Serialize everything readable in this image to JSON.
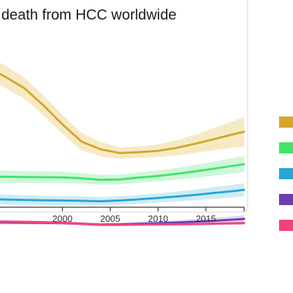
{
  "chart_data": {
    "type": "line",
    "title": "death from HCC worldwide",
    "xlabel": "",
    "ylabel": "",
    "xlim": [
      1990,
      2019
    ],
    "ylim": [
      0,
      1
    ],
    "xticks": [
      2000,
      2005,
      2010,
      2015
    ],
    "grid": false,
    "legend_position": "right",
    "x": [
      1990,
      1992,
      1994,
      1996,
      1998,
      2000,
      2002,
      2004,
      2006,
      2008,
      2010,
      2012,
      2014,
      2016,
      2018,
      2019
    ],
    "series": [
      {
        "color": "#d4a62a",
        "band_color": "#f5e6bb",
        "values": [
          0.93,
          0.89,
          0.84,
          0.78,
          0.69,
          0.59,
          0.5,
          0.46,
          0.44,
          0.445,
          0.452,
          0.468,
          0.49,
          0.515,
          0.54,
          0.552
        ],
        "band": [
          0.065,
          0.062,
          0.058,
          0.055,
          0.052,
          0.05,
          0.045,
          0.038,
          0.03,
          0.03,
          0.033,
          0.04,
          0.048,
          0.06,
          0.07,
          0.078
        ]
      },
      {
        "color": "#42e46a",
        "band_color": "#c7f6d2",
        "values": [
          0.32,
          0.318,
          0.316,
          0.315,
          0.314,
          0.313,
          0.308,
          0.3,
          0.302,
          0.312,
          0.32,
          0.332,
          0.345,
          0.36,
          0.375,
          0.382
        ],
        "band": [
          0.035,
          0.033,
          0.032,
          0.031,
          0.03,
          0.03,
          0.028,
          0.026,
          0.026,
          0.027,
          0.029,
          0.031,
          0.034,
          0.037,
          0.04,
          0.042
        ]
      },
      {
        "color": "#24a7d6",
        "band_color": "#c8e8f5",
        "values": [
          0.205,
          0.2,
          0.197,
          0.195,
          0.193,
          0.192,
          0.19,
          0.188,
          0.192,
          0.198,
          0.205,
          0.213,
          0.222,
          0.232,
          0.242,
          0.248
        ],
        "band": [
          0.028,
          0.027,
          0.026,
          0.025,
          0.024,
          0.024,
          0.023,
          0.022,
          0.022,
          0.023,
          0.024,
          0.026,
          0.028,
          0.031,
          0.033,
          0.034
        ]
      },
      {
        "color": "#6a3fb3",
        "band_color": "#dccff2",
        "values": [
          0.08,
          0.078,
          0.077,
          0.076,
          0.075,
          0.074,
          0.07,
          0.066,
          0.067,
          0.07,
          0.073,
          0.077,
          0.081,
          0.086,
          0.092,
          0.096
        ],
        "band": [
          0.012,
          0.011,
          0.011,
          0.01,
          0.01,
          0.01,
          0.009,
          0.009,
          0.009,
          0.01,
          0.011,
          0.012,
          0.014,
          0.016,
          0.018,
          0.019
        ]
      },
      {
        "color": "#f0437a",
        "band_color": "#f9c8d7",
        "values": [
          0.085,
          0.083,
          0.081,
          0.08,
          0.078,
          0.076,
          0.07,
          0.065,
          0.065,
          0.066,
          0.067,
          0.068,
          0.069,
          0.071,
          0.073,
          0.074
        ],
        "band": [
          0.01,
          0.01,
          0.009,
          0.009,
          0.009,
          0.008,
          0.008,
          0.007,
          0.007,
          0.007,
          0.007,
          0.008,
          0.008,
          0.009,
          0.009,
          0.01
        ]
      }
    ]
  }
}
